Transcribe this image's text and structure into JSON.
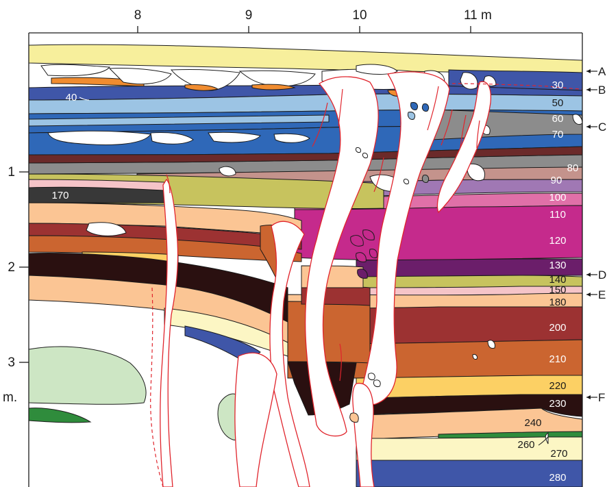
{
  "x_axis": {
    "ticks": [
      {
        "label": "8",
        "value": 8
      },
      {
        "label": "9",
        "value": 9
      },
      {
        "label": "10",
        "value": 10
      },
      {
        "label": "11 m",
        "value": 11
      }
    ]
  },
  "y_axis": {
    "ticks": [
      {
        "label": "1",
        "value": 1
      },
      {
        "label": "2",
        "value": 2
      },
      {
        "label": "3",
        "value": 3
      }
    ],
    "unit": "m."
  },
  "markers": [
    {
      "label": "A"
    },
    {
      "label": "B"
    },
    {
      "label": "C"
    },
    {
      "label": "D"
    },
    {
      "label": "E"
    },
    {
      "label": "F"
    }
  ],
  "layer_labels": [
    {
      "text": "30",
      "color": "#ffffff"
    },
    {
      "text": "40",
      "color": "#ffffff"
    },
    {
      "text": "50",
      "color": "#1a1a1a"
    },
    {
      "text": "60",
      "color": "#ffffff"
    },
    {
      "text": "70",
      "color": "#ffffff"
    },
    {
      "text": "80",
      "color": "#ffffff"
    },
    {
      "text": "90",
      "color": "#ffffff"
    },
    {
      "text": "100",
      "color": "#ffffff"
    },
    {
      "text": "110",
      "color": "#ffffff"
    },
    {
      "text": "120",
      "color": "#ffffff"
    },
    {
      "text": "130",
      "color": "#ffffff"
    },
    {
      "text": "140",
      "color": "#1a1a1a"
    },
    {
      "text": "150",
      "color": "#1a1a1a"
    },
    {
      "text": "170",
      "color": "#ffffff"
    },
    {
      "text": "180",
      "color": "#1a1a1a"
    },
    {
      "text": "200",
      "color": "#ffffff"
    },
    {
      "text": "210",
      "color": "#ffffff"
    },
    {
      "text": "220",
      "color": "#1a1a1a"
    },
    {
      "text": "230",
      "color": "#ffffff"
    },
    {
      "text": "240",
      "color": "#1a1a1a"
    },
    {
      "text": "260",
      "color": "#1a1a1a"
    },
    {
      "text": "270",
      "color": "#1a1a1a"
    },
    {
      "text": "280",
      "color": "#ffffff"
    }
  ],
  "colors": {
    "yellow_pale": "#f7ef9c",
    "blue_dark": "#3f56a8",
    "blue_mid": "#2f68b8",
    "blue_light": "#9cc4e4",
    "grey": "#8c8c8c",
    "maroon": "#6b2a2a",
    "pink_brown": "#c4938c",
    "lavender": "#a078b4",
    "pink": "#e070a8",
    "magenta": "#c52a8c",
    "purple_dark": "#6b1e6a",
    "olive": "#c7c35e",
    "light_pink": "#f5c4c8",
    "peach": "#fbc594",
    "red_brown": "#9c3232",
    "orange_brown": "#cb6530",
    "black_brown": "#2a1010",
    "yellow_orange": "#fcd064",
    "cream": "#fcf6c4",
    "green_dark": "#2f8c3c",
    "green_light": "#cde6c4",
    "orange": "#f08c30",
    "charcoal": "#383838",
    "fissure_red": "#e0242c"
  }
}
